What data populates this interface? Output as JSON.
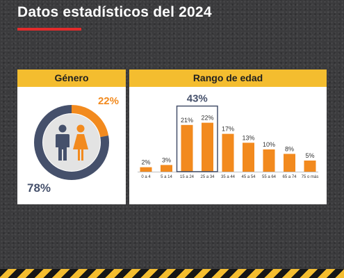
{
  "page": {
    "title": "Datos estadísticos del 2024"
  },
  "colors": {
    "accent_red": "#e32b2b",
    "header_yellow": "#f4bd2f",
    "orange": "#f28a1e",
    "navy": "#45506b",
    "light_gray": "#e3e3e3"
  },
  "chart_data": [
    {
      "type": "pie",
      "title": "Género",
      "categories": [
        "",
        ""
      ],
      "values": [
        22,
        78
      ],
      "labels": [
        "22%",
        "78%"
      ],
      "colors": [
        "#f28a1e",
        "#45506b"
      ],
      "icons": [
        "male-person-icon",
        "female-person-icon"
      ]
    },
    {
      "type": "bar",
      "title": "Rango de edad",
      "categories": [
        "0 a 4",
        "5 a 14",
        "15 a 24",
        "25 a 34",
        "35 a 44",
        "45 a 54",
        "55 a 64",
        "65 a 74",
        "75 o más"
      ],
      "values": [
        2,
        3,
        21,
        22,
        17,
        13,
        10,
        8,
        5
      ],
      "labels": [
        "2%",
        "3%",
        "21%",
        "22%",
        "17%",
        "13%",
        "10%",
        "8%",
        "5%"
      ],
      "ylim": [
        0,
        30
      ],
      "highlight": {
        "categories": [
          "15 a 24",
          "25 a 34"
        ],
        "label": "43%"
      },
      "colors": {
        "bar": "#f28a1e",
        "highlight": "#45506b"
      }
    }
  ]
}
